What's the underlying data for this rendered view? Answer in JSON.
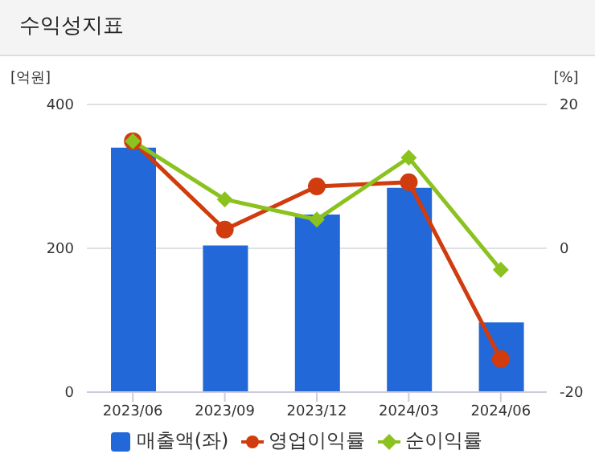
{
  "chart_data": {
    "type": "bar",
    "title": "수익성지표",
    "ylabel": "[억원]",
    "y2label": "[%]",
    "categories": [
      "2023/06",
      "2023/09",
      "2023/12",
      "2024/03",
      "2024/06"
    ],
    "series": [
      {
        "name": "매출액(좌)",
        "color": "#2268d8",
        "values": [
          340,
          204,
          247,
          284,
          97
        ]
      },
      {
        "name": "영업이익률",
        "type": "line",
        "axis": "y2",
        "marker": "circle",
        "color": "#d03c0e",
        "values": [
          14.9,
          2.6,
          8.6,
          9.2,
          -15.4
        ]
      },
      {
        "name": "순이익률",
        "type": "line",
        "axis": "y2",
        "marker": "diamond",
        "color": "#8cc220",
        "values": [
          14.9,
          6.8,
          4.0,
          12.6,
          -3.0
        ]
      }
    ],
    "ylim": [
      0,
      400
    ],
    "yticks": [
      0,
      200,
      400
    ],
    "y2lim": [
      -20,
      20
    ],
    "y2ticks": [
      -20,
      0,
      20
    ],
    "grid": "y",
    "legend": "bottom"
  }
}
